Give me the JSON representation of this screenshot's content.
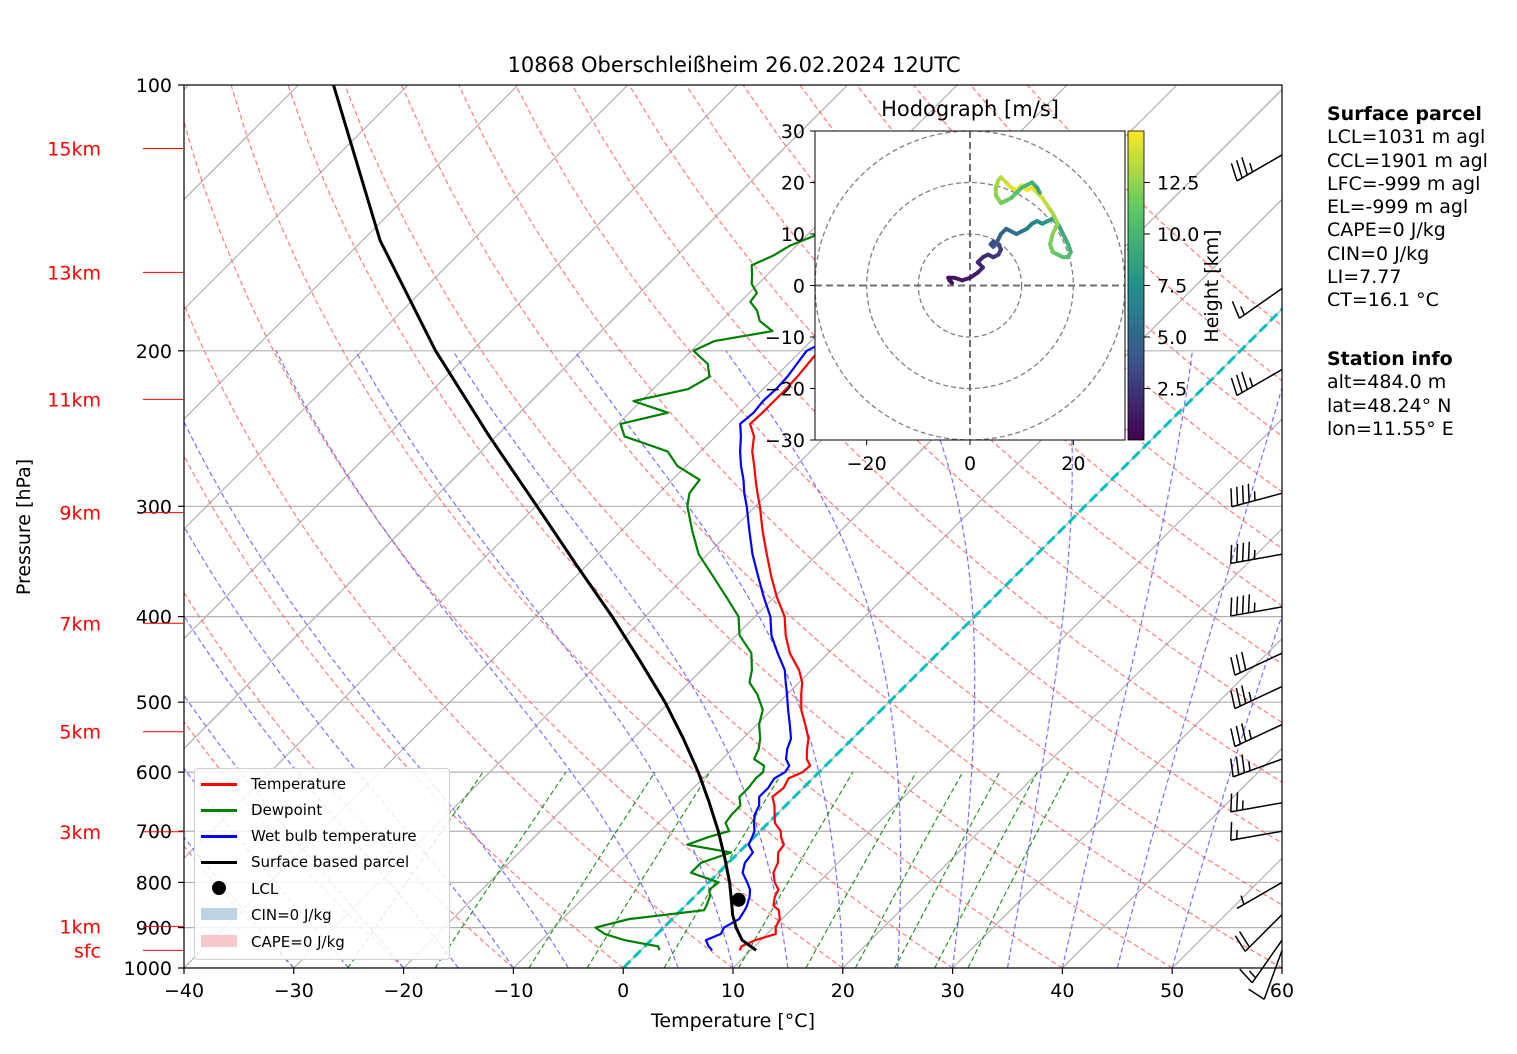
{
  "chart_data": [
    {
      "type": "line",
      "title": "10868 Oberschleißheim 26.02.2024 12UTC",
      "xlabel": "Temperature [°C]",
      "ylabel": "Pressure [hPa]",
      "xlim": [
        -40,
        60
      ],
      "ylim": [
        1000,
        100
      ],
      "x_ticks": [
        "−40",
        "−30",
        "−20",
        "−10",
        "0",
        "10",
        "20",
        "30",
        "40",
        "50",
        "60"
      ],
      "x_tick_values": [
        -40,
        -30,
        -20,
        -10,
        0,
        10,
        20,
        30,
        40,
        50,
        60
      ],
      "y_ticks": [
        "100",
        "200",
        "300",
        "400",
        "500",
        "600",
        "700",
        "800",
        "900",
        "1000"
      ],
      "y_tick_values": [
        100,
        200,
        300,
        400,
        500,
        600,
        700,
        800,
        900,
        1000
      ],
      "height_labels": [
        {
          "text": "15km",
          "p": 118
        },
        {
          "text": "13km",
          "p": 163
        },
        {
          "text": "11km",
          "p": 227
        },
        {
          "text": "9km",
          "p": 305
        },
        {
          "text": "7km",
          "p": 407
        },
        {
          "text": "5km",
          "p": 540
        },
        {
          "text": "3km",
          "p": 701
        },
        {
          "text": "1km",
          "p": 897
        },
        {
          "text": "sfc",
          "p": 955
        }
      ],
      "series": [
        {
          "name": "Temperature",
          "color": "#ff0000",
          "p": [
            955,
            945,
            930,
            915,
            900,
            880,
            860,
            850,
            830,
            815,
            800,
            780,
            760,
            740,
            725,
            710,
            700,
            685,
            670,
            655,
            640,
            625,
            610,
            600,
            590,
            580,
            565,
            550,
            530,
            510,
            490,
            475,
            460,
            440,
            420,
            400,
            380,
            360,
            340,
            320,
            300,
            290,
            280,
            270,
            260,
            250,
            242,
            235,
            228,
            221,
            214,
            207,
            200,
            195,
            190,
            185,
            180,
            176,
            172,
            168,
            164,
            160,
            156,
            152,
            148,
            144,
            140,
            136,
            132,
            128,
            124,
            121,
            118
          ],
          "t": [
            9.0,
            8.8,
            9.5,
            10.8,
            10.2,
            9.8,
            8.9,
            8.0,
            7.3,
            7.0,
            6.0,
            5.0,
            4.5,
            3.6,
            3.4,
            2.4,
            1.9,
            0.6,
            -0.2,
            -1.0,
            -2.0,
            -1.8,
            -2.2,
            -1.5,
            -1.4,
            -2.3,
            -3.2,
            -4.0,
            -5.6,
            -7.3,
            -8.7,
            -9.7,
            -11.1,
            -13.5,
            -15.5,
            -17.3,
            -19.8,
            -22.2,
            -24.6,
            -27.1,
            -29.6,
            -31.0,
            -32.4,
            -33.8,
            -35.3,
            -36.5,
            -38.0,
            -37.9,
            -37.9,
            -37.9,
            -38.0,
            -38.2,
            -38.4,
            -37.5,
            -35.8,
            -33.1,
            -32.2,
            -32.4,
            -31.6,
            -31.4,
            -29.4,
            -27.8,
            -28.1,
            -27.2,
            -27.4,
            -28.2,
            -28.0,
            -29.1,
            -28.5,
            -29.0,
            -29.3,
            -29.3,
            -29.8
          ]
        },
        {
          "name": "Dewpoint",
          "color": "#008000",
          "p": [
            955,
            945,
            930,
            915,
            900,
            880,
            860,
            850,
            830,
            815,
            800,
            780,
            760,
            740,
            725,
            710,
            700,
            685,
            670,
            655,
            640,
            625,
            610,
            600,
            590,
            580,
            565,
            550,
            530,
            510,
            490,
            475,
            460,
            440,
            420,
            400,
            380,
            360,
            340,
            320,
            300,
            290,
            280,
            270,
            260,
            250,
            242,
            235,
            228,
            221,
            214,
            207,
            200,
            195,
            190,
            185,
            180,
            176,
            172,
            168,
            164,
            160,
            156,
            152,
            148,
            144,
            140,
            136,
            132,
            128,
            124,
            121,
            118
          ],
          "t": [
            1.7,
            1.2,
            -2.4,
            -4.8,
            -6.2,
            -3.9,
            2.1,
            1.9,
            1.4,
            0.7,
            0.9,
            -2.5,
            -2.5,
            -0.7,
            -5.4,
            -4.1,
            -2.8,
            -3.9,
            -4.1,
            -4.1,
            -5.0,
            -5.0,
            -5.2,
            -5.1,
            -5.6,
            -7.1,
            -7.6,
            -8.4,
            -9.8,
            -10.8,
            -12.7,
            -14.5,
            -15.4,
            -17.0,
            -19.7,
            -21.5,
            -24.4,
            -27.5,
            -30.8,
            -33.5,
            -36.2,
            -37.2,
            -37.5,
            -40.8,
            -43.0,
            -48.3,
            -49.8,
            -46.5,
            -50.7,
            -46.8,
            -46.0,
            -47.3,
            -49.8,
            -48.8,
            -44.4,
            -46.5,
            -47.7,
            -49.1,
            -49.3,
            -50.6,
            -51.4,
            -52.3,
            -51.2,
            -50.6,
            -49.2,
            -48.1,
            -47.2,
            -46.6,
            -45.7,
            -44.8,
            -43.9,
            -42.6,
            -40.7
          ]
        },
        {
          "name": "Wet bulb temperature",
          "color": "#0000ff",
          "p": [
            955,
            945,
            930,
            915,
            900,
            880,
            860,
            850,
            830,
            815,
            800,
            780,
            760,
            740,
            725,
            710,
            700,
            685,
            670,
            655,
            640,
            625,
            610,
            600,
            590,
            580,
            565,
            550,
            530,
            510,
            490,
            475,
            460,
            440,
            420,
            400,
            380,
            360,
            340,
            320,
            300,
            290,
            280,
            270,
            260,
            250,
            242,
            235,
            228,
            221,
            214,
            207,
            200,
            195,
            190,
            185,
            180,
            176,
            172,
            168,
            164,
            160,
            156,
            152,
            148,
            144,
            140,
            136,
            132,
            128,
            124,
            121,
            118
          ],
          "t": [
            6.5,
            5.8,
            5.0,
            5.8,
            5.5,
            6.1,
            5.8,
            5.6,
            5.0,
            4.4,
            3.5,
            2.2,
            1.5,
            1.3,
            0.2,
            -0.2,
            -0.5,
            -1.3,
            -2.0,
            -2.4,
            -3.2,
            -3.2,
            -3.5,
            -3.1,
            -3.3,
            -4.2,
            -5.0,
            -5.6,
            -7.0,
            -8.5,
            -10.0,
            -11.2,
            -12.4,
            -14.6,
            -16.8,
            -18.6,
            -21.0,
            -23.4,
            -25.9,
            -28.3,
            -30.8,
            -32.2,
            -33.5,
            -35.0,
            -36.4,
            -37.7,
            -38.9,
            -38.7,
            -38.9,
            -38.8,
            -38.9,
            -39.2,
            -39.5,
            -38.6,
            -36.8,
            -34.4,
            -33.6,
            -33.9,
            -33.2,
            -32.9,
            -31.2,
            -29.7,
            -29.9,
            -29.1,
            -29.2,
            -29.8,
            -29.6,
            -30.5,
            -29.9,
            -30.3,
            -30.5,
            -30.5,
            -30.9
          ]
        },
        {
          "name": "Surface based parcel",
          "color": "#000000",
          "p": [
            955,
            930,
            900,
            870,
            845,
            800,
            750,
            700,
            650,
            600,
            550,
            500,
            450,
            400,
            350,
            300,
            250,
            200,
            150,
            100
          ],
          "t": [
            10.5,
            8.3,
            6.6,
            5.1,
            4.0,
            1.9,
            -0.8,
            -3.8,
            -7.2,
            -11.0,
            -15.4,
            -20.4,
            -26.3,
            -33.0,
            -40.9,
            -49.9,
            -60.6,
            -73.3,
            -88.4,
            -106.8
          ]
        }
      ],
      "lcl": {
        "name": "LCL",
        "t": 4.3,
        "p": 837
      },
      "cin_label": "CIN=0 J/kg",
      "cape_label": "CAPE=0 J/kg",
      "isotherm_0c_color": "#00bfbf",
      "legend_position": "lower-left",
      "winds": [
        {
          "p": 955,
          "speed_kt": 10,
          "dir": 200
        },
        {
          "p": 930,
          "speed_kt": 15,
          "dir": 215
        },
        {
          "p": 870,
          "speed_kt": 20,
          "dir": 225
        },
        {
          "p": 800,
          "speed_kt": 5,
          "dir": 240
        },
        {
          "p": 700,
          "speed_kt": 15,
          "dir": 260
        },
        {
          "p": 650,
          "speed_kt": 25,
          "dir": 260
        },
        {
          "p": 580,
          "speed_kt": 35,
          "dir": 250
        },
        {
          "p": 530,
          "speed_kt": 35,
          "dir": 245
        },
        {
          "p": 480,
          "speed_kt": 35,
          "dir": 245
        },
        {
          "p": 440,
          "speed_kt": 30,
          "dir": 245
        },
        {
          "p": 390,
          "speed_kt": 45,
          "dir": 260
        },
        {
          "p": 340,
          "speed_kt": 45,
          "dir": 260
        },
        {
          "p": 290,
          "speed_kt": 45,
          "dir": 255
        },
        {
          "p": 210,
          "speed_kt": 35,
          "dir": 240
        },
        {
          "p": 170,
          "speed_kt": 15,
          "dir": 235
        },
        {
          "p": 120,
          "speed_kt": 35,
          "dir": 240
        }
      ]
    },
    {
      "type": "line",
      "title": "Hodograph [m/s]",
      "xlim": [
        -30,
        30
      ],
      "ylim": [
        -30,
        30
      ],
      "x_ticks": [
        "−20",
        "0",
        "20"
      ],
      "x_tick_values": [
        -20,
        0,
        20
      ],
      "y_ticks": [
        "30",
        "20",
        "10",
        "0",
        "−10",
        "−20",
        "−30"
      ],
      "y_tick_values": [
        30,
        20,
        10,
        0,
        -10,
        -20,
        -30
      ],
      "rings": [
        10,
        20,
        30
      ],
      "colorbar": {
        "label": "Height [km]",
        "range": [
          0,
          15
        ],
        "ticks": [
          "2.5",
          "5.0",
          "7.5",
          "10.0",
          "12.5"
        ],
        "tick_values": [
          2.5,
          5.0,
          7.5,
          10.0,
          12.5
        ]
      },
      "trace": {
        "u": [
          -4,
          -3.5,
          -4.2,
          -3,
          -1.5,
          0,
          1.5,
          2.5,
          1.5,
          2.5,
          3.5,
          4.5,
          5.5,
          6,
          5.5,
          4.5,
          4,
          4.5,
          5,
          5.5,
          6,
          7,
          8,
          9,
          10,
          11,
          12,
          13,
          14,
          15,
          16,
          17,
          18,
          19,
          19.5,
          19,
          18,
          17,
          16,
          15.5,
          16,
          17,
          16,
          15,
          14,
          13,
          12,
          11,
          10,
          9,
          8,
          7,
          6,
          5.5,
          5,
          5,
          6,
          7,
          8,
          9,
          10,
          11,
          12,
          13,
          13.5
        ],
        "v": [
          1,
          0.5,
          1.5,
          1.5,
          1,
          1.5,
          2.5,
          3.5,
          4.5,
          5.5,
          6,
          5.5,
          6,
          7,
          8,
          8.5,
          8,
          7.5,
          8,
          9,
          10,
          11,
          10.5,
          10,
          10.5,
          11,
          12,
          12.5,
          12,
          12.5,
          13,
          12,
          10,
          8,
          6.5,
          5.5,
          5.5,
          6,
          6.5,
          8,
          10,
          12,
          14,
          15.5,
          17,
          18,
          19,
          18.5,
          19.5,
          18.5,
          19,
          20,
          21,
          20.5,
          19,
          17.5,
          16,
          16.5,
          17,
          18,
          19,
          19.5,
          20,
          19,
          18
        ],
        "height_km": [
          0.5,
          0.7,
          0.8,
          0.9,
          1.0,
          1.2,
          1.4,
          1.6,
          1.8,
          2.0,
          2.2,
          2.4,
          2.6,
          2.8,
          3.0,
          3.3,
          3.6,
          3.9,
          4.2,
          4.5,
          4.8,
          5.1,
          5.4,
          5.7,
          6.0,
          6.4,
          6.8,
          7.2,
          7.6,
          8.0,
          8.4,
          8.8,
          9.2,
          9.6,
          10.0,
          10.4,
          10.8,
          11.2,
          11.6,
          12.0,
          12.4,
          12.8,
          13.2,
          13.6,
          14.0,
          14.3,
          14.6,
          14.8,
          15.0,
          14.6,
          14.2,
          13.8,
          13.4,
          13.0,
          12.6,
          12.2,
          11.8,
          11.4,
          11.0,
          10.6,
          10.2,
          9.8,
          9.4,
          9.0,
          8.6
        ]
      }
    }
  ],
  "info": {
    "surface_title": "Surface parcel",
    "surface_lines": [
      "LCL=1031 m agl",
      "CCL=1901 m agl",
      "LFC=-999 m agl",
      "EL=-999 m agl",
      "CAPE=0 J/kg",
      "CIN=0 J/kg",
      "LI=7.77",
      "CT=16.1 °C"
    ],
    "station_title": "Station info",
    "station_lines": [
      "alt=484.0 m",
      "lat=48.24° N",
      "lon=11.55° E"
    ]
  },
  "legend": {
    "items": [
      {
        "label": "Temperature",
        "color": "#ff0000",
        "kind": "line"
      },
      {
        "label": "Dewpoint",
        "color": "#008000",
        "kind": "line"
      },
      {
        "label": "Wet bulb temperature",
        "color": "#0000ff",
        "kind": "line"
      },
      {
        "label": "Surface based parcel",
        "color": "#000000",
        "kind": "line"
      },
      {
        "label": "LCL",
        "color": "#000000",
        "kind": "dot"
      },
      {
        "label": "CIN=0 J/kg",
        "color": "#bcd3e6",
        "kind": "box"
      },
      {
        "label": "CAPE=0 J/kg",
        "color": "#f6c8c8",
        "kind": "box"
      }
    ]
  }
}
